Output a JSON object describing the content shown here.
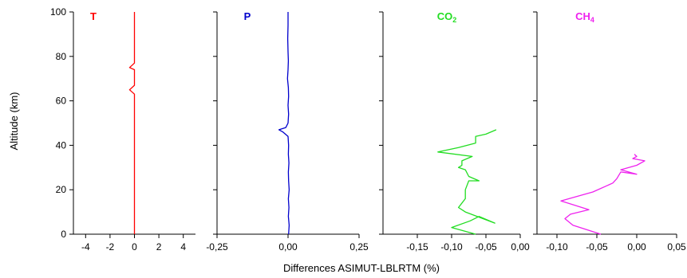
{
  "figure": {
    "ylabel": "Altitude (km)",
    "xlabel": "Differences ASIMUT-LBLRTM (%)"
  },
  "chart_data": [
    {
      "type": "line",
      "panel_label": "T",
      "color": "#ff0000",
      "xlim": [
        -5,
        5
      ],
      "ylim": [
        0,
        100
      ],
      "xticks": [
        -4,
        -2,
        0,
        2,
        4
      ],
      "xtick_labels": [
        "-4",
        "-2",
        "0",
        "2",
        "4"
      ],
      "yticks": [
        0,
        20,
        40,
        60,
        80,
        100
      ],
      "ytick_labels": [
        "0",
        "20",
        "40",
        "60",
        "80",
        "100"
      ],
      "series": [
        {
          "x": [
            0,
            0,
            0,
            0,
            -0.4,
            0,
            0,
            0,
            -0.4,
            0,
            0,
            0
          ],
          "y": [
            0,
            40,
            46,
            63,
            65,
            67,
            73,
            74,
            75,
            77,
            80,
            100
          ]
        }
      ]
    },
    {
      "type": "line",
      "panel_label": "P",
      "color": "#0000cc",
      "xlim": [
        -0.25,
        0.25
      ],
      "ylim": [
        0,
        100
      ],
      "xticks": [
        -0.25,
        0,
        0.25
      ],
      "xtick_labels": [
        "-0,25",
        "0,00",
        "0,25"
      ],
      "yticks": [
        0,
        20,
        40,
        60,
        80,
        100
      ],
      "series": [
        {
          "x": [
            0.002,
            0.004,
            0.001,
            0.003,
            0.001,
            0.004,
            0.002,
            0.001,
            0.003,
            0.001,
            0.002,
            0.0,
            -0.018,
            -0.032,
            -0.008,
            0.0,
            0.002,
            0.0,
            0.002,
            0.001,
            -0.002,
            0.0,
            0.001,
            0.0,
            -0.001,
            0.0,
            0.0
          ],
          "y": [
            0,
            4,
            8,
            12,
            16,
            20,
            24,
            28,
            32,
            36,
            40,
            44,
            46,
            47,
            48,
            50,
            54,
            58,
            62,
            66,
            70,
            74,
            78,
            82,
            88,
            94,
            100
          ]
        }
      ]
    },
    {
      "type": "line",
      "panel_label": "CO",
      "panel_label_sub": "2",
      "color": "#22dd22",
      "xlim": [
        -0.2,
        0.0
      ],
      "ylim": [
        0,
        100
      ],
      "xticks": [
        -0.15,
        -0.1,
        -0.05,
        0.0
      ],
      "xtick_labels": [
        "-0,15",
        "-0,10",
        "-0,05",
        "0,00"
      ],
      "yticks": [
        0,
        20,
        40,
        60,
        80,
        100
      ],
      "series": [
        {
          "x": [
            -0.065,
            -0.1,
            -0.073,
            -0.06,
            -0.037,
            -0.08,
            -0.09,
            -0.08,
            -0.08,
            -0.075,
            -0.06,
            -0.075,
            -0.08,
            -0.09,
            -0.085,
            -0.085,
            -0.07,
            -0.12,
            -0.09,
            -0.065,
            -0.065,
            -0.05,
            -0.035
          ],
          "y": [
            0,
            3,
            6,
            8,
            5,
            10,
            12,
            16,
            20,
            24,
            24,
            26,
            29,
            30,
            31,
            33,
            35,
            37,
            39,
            41,
            44,
            45,
            47
          ]
        }
      ]
    },
    {
      "type": "line",
      "panel_label": "CH",
      "panel_label_sub": "4",
      "color": "#ee22ee",
      "xlim": [
        -0.125,
        0.05
      ],
      "ylim": [
        0,
        100
      ],
      "xticks": [
        -0.1,
        -0.05,
        0.0,
        0.05
      ],
      "xtick_labels": [
        "-0,10",
        "-0,05",
        "0,00",
        "0,05"
      ],
      "yticks": [
        0,
        20,
        40,
        60,
        80,
        100
      ],
      "series": [
        {
          "x": [
            -0.045,
            -0.08,
            -0.09,
            -0.083,
            -0.06,
            -0.095,
            -0.055,
            -0.03,
            -0.025,
            -0.02,
            0.0,
            -0.02,
            0.0,
            0.01,
            -0.005,
            0.0,
            -0.003
          ],
          "y": [
            0,
            4,
            7,
            9,
            11,
            15,
            19,
            23,
            25,
            28,
            27,
            29,
            31,
            33,
            34,
            35,
            36
          ]
        }
      ]
    }
  ]
}
